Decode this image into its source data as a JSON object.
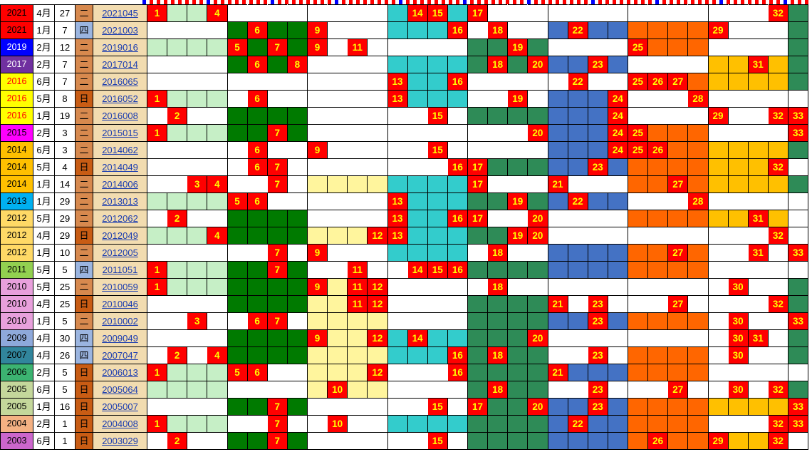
{
  "colors": {
    "hit": "#ff0000",
    "hit_text": "#ffff00",
    "period_bg": "#f2dcb0",
    "period_text": "#1a3cb0",
    "group_colors": [
      "#c6efc6",
      "#007a00",
      "#fff59d",
      "#33cccc",
      "#2e8b57",
      "#4472c4",
      "#ff6600",
      "#ffc000",
      "#2e8b57"
    ],
    "weekday_colors": {
      "二": "#d7894e",
      "日": "#c85c14",
      "四": "#9bb5e0"
    }
  },
  "header_strip": {
    "pattern": "red-white-blue-markers"
  },
  "rows": [
    {
      "year": "2021",
      "year_bg": "#ff0000",
      "year_fg": "#000000",
      "month": "4月",
      "day": "27",
      "weekday": "二",
      "period": "2021045",
      "groups": [
        1,
        0,
        0,
        1,
        0,
        0,
        0,
        0,
        1
      ],
      "nums": {
        "1": "1",
        "4": "4",
        "14": "14",
        "15": "15",
        "17": "17",
        "32": "32"
      }
    },
    {
      "year": "2021",
      "year_bg": "#ff0000",
      "year_fg": "#000000",
      "month": "1月",
      "day": "7",
      "weekday": "四",
      "period": "2021003",
      "groups": [
        0,
        1,
        0,
        1,
        0,
        1,
        1,
        0,
        1
      ],
      "nums": {
        "29": "29",
        "22": "22",
        "6": "6",
        "16": "16",
        "9": "9",
        "18": "18"
      }
    },
    {
      "year": "2019",
      "year_bg": "#0000ff",
      "year_fg": "#ffffff",
      "month": "2月",
      "day": "12",
      "weekday": "二",
      "period": "2019016",
      "groups": [
        1,
        1,
        0,
        0,
        1,
        0,
        1,
        0,
        1
      ],
      "nums": {
        "19": "19",
        "11": "11",
        "5": "5",
        "7": "7",
        "25": "25",
        "9": "9"
      }
    },
    {
      "year": "2017",
      "year_bg": "#7030a0",
      "year_fg": "#ffffff",
      "month": "2月",
      "day": "7",
      "weekday": "二",
      "period": "2017014",
      "groups": [
        0,
        1,
        0,
        1,
        1,
        1,
        0,
        1,
        1
      ],
      "nums": {
        "20": "20",
        "31": "31",
        "23": "23",
        "6": "6",
        "8": "8",
        "18": "18"
      }
    },
    {
      "year": "2016",
      "year_bg": "#ffff00",
      "year_fg": "#ff0000",
      "month": "6月",
      "day": "7",
      "weekday": "二",
      "period": "2016065",
      "groups": [
        0,
        0,
        0,
        1,
        0,
        0,
        1,
        1,
        1
      ],
      "nums": {
        "13": "13",
        "22": "22",
        "16": "16",
        "25": "25",
        "26": "26",
        "27": "27"
      }
    },
    {
      "year": "2016",
      "year_bg": "#ffff00",
      "year_fg": "#ff0000",
      "month": "5月",
      "day": "8",
      "weekday": "日",
      "period": "2016052",
      "groups": [
        1,
        0,
        0,
        1,
        0,
        1,
        0,
        0,
        0
      ],
      "nums": {
        "1": "1",
        "19": "19",
        "28": "28",
        "13": "13",
        "6": "6",
        "24": "24"
      }
    },
    {
      "year": "2016",
      "year_bg": "#ffff00",
      "year_fg": "#ff0000",
      "month": "1月",
      "day": "19",
      "weekday": "二",
      "period": "2016008",
      "groups": [
        0,
        1,
        0,
        0,
        1,
        1,
        0,
        0,
        0
      ],
      "nums": {
        "2": "2",
        "29": "29",
        "32": "32",
        "15": "15",
        "24": "24",
        "33": "33"
      }
    },
    {
      "year": "2015",
      "year_bg": "#ff00ff",
      "year_fg": "#000000",
      "month": "2月",
      "day": "3",
      "weekday": "二",
      "period": "2015015",
      "groups": [
        1,
        1,
        0,
        0,
        0,
        1,
        1,
        0,
        0
      ],
      "nums": {
        "1": "1",
        "20": "20",
        "24": "24",
        "33": "33",
        "7": "7",
        "25": "25"
      }
    },
    {
      "year": "2014",
      "year_bg": "#ffc000",
      "year_fg": "#000000",
      "month": "6月",
      "day": "3",
      "weekday": "二",
      "period": "2014062",
      "groups": [
        0,
        0,
        0,
        0,
        0,
        1,
        1,
        1,
        1
      ],
      "nums": {
        "6": "6",
        "15": "15",
        "24": "24",
        "25": "25",
        "26": "26",
        "9": "9"
      }
    },
    {
      "year": "2014",
      "year_bg": "#ffc000",
      "year_fg": "#000000",
      "month": "5月",
      "day": "4",
      "weekday": "日",
      "period": "2014049",
      "groups": [
        0,
        0,
        0,
        0,
        1,
        1,
        1,
        1,
        0
      ],
      "nums": {
        "23": "23",
        "32": "32",
        "6": "6",
        "7": "7",
        "16": "16",
        "17": "17"
      }
    },
    {
      "year": "2014",
      "year_bg": "#ffc000",
      "year_fg": "#000000",
      "month": "1月",
      "day": "14",
      "weekday": "二",
      "period": "2014006",
      "groups": [
        0,
        0,
        1,
        1,
        0,
        0,
        1,
        1,
        1
      ],
      "nums": {
        "3": "3",
        "21": "21",
        "4": "4",
        "7": "7",
        "17": "17",
        "27": "27"
      }
    },
    {
      "year": "2013",
      "year_bg": "#00b0f0",
      "year_fg": "#000000",
      "month": "1月",
      "day": "29",
      "weekday": "二",
      "period": "2013013",
      "groups": [
        1,
        0,
        0,
        1,
        1,
        1,
        0,
        0,
        0
      ],
      "nums": {
        "19": "19",
        "28": "28",
        "13": "13",
        "22": "22",
        "5": "5",
        "6": "6"
      }
    },
    {
      "year": "2012",
      "year_bg": "#ffd966",
      "year_fg": "#000000",
      "month": "5月",
      "day": "29",
      "weekday": "二",
      "period": "2012062",
      "groups": [
        0,
        1,
        0,
        1,
        0,
        0,
        1,
        1,
        0
      ],
      "nums": {
        "2": "2",
        "20": "20",
        "13": "13",
        "31": "31",
        "16": "16",
        "17": "17"
      }
    },
    {
      "year": "2012",
      "year_bg": "#ffd966",
      "year_fg": "#000000",
      "month": "4月",
      "day": "29",
      "weekday": "日",
      "period": "2012049",
      "groups": [
        1,
        1,
        1,
        1,
        1,
        0,
        0,
        0,
        0
      ],
      "nums": {
        "19": "19",
        "20": "20",
        "12": "12",
        "4": "4",
        "13": "13",
        "32": "32"
      }
    },
    {
      "year": "2012",
      "year_bg": "#ffd966",
      "year_fg": "#000000",
      "month": "1月",
      "day": "10",
      "weekday": "二",
      "period": "2012005",
      "groups": [
        0,
        0,
        0,
        1,
        0,
        1,
        1,
        0,
        1
      ],
      "nums": {
        "31": "31",
        "33": "33",
        "7": "7",
        "9": "9",
        "18": "18",
        "27": "27"
      }
    },
    {
      "year": "2011",
      "year_bg": "#92d050",
      "year_fg": "#000000",
      "month": "5月",
      "day": "5",
      "weekday": "四",
      "period": "2011051",
      "groups": [
        1,
        1,
        0,
        0,
        1,
        1,
        1,
        0,
        0
      ],
      "nums": {
        "1": "1",
        "11": "11",
        "14": "14",
        "15": "15",
        "7": "7",
        "16": "16"
      }
    },
    {
      "year": "2010",
      "year_bg": "#e8a0dc",
      "year_fg": "#000000",
      "month": "5月",
      "day": "25",
      "weekday": "二",
      "period": "2010059",
      "groups": [
        1,
        1,
        1,
        0,
        0,
        0,
        0,
        0,
        1
      ],
      "nums": {
        "1": "1",
        "11": "11",
        "12": "12",
        "30": "30",
        "9": "9",
        "18": "18"
      }
    },
    {
      "year": "2010",
      "year_bg": "#e8a0dc",
      "year_fg": "#000000",
      "month": "4月",
      "day": "25",
      "weekday": "日",
      "period": "2010046",
      "groups": [
        0,
        1,
        1,
        0,
        1,
        0,
        0,
        0,
        1
      ],
      "nums": {
        "11": "11",
        "12": "12",
        "21": "21",
        "23": "23",
        "32": "32",
        "27": "27"
      }
    },
    {
      "year": "2010",
      "year_bg": "#e8a0dc",
      "year_fg": "#000000",
      "month": "1月",
      "day": "5",
      "weekday": "二",
      "period": "2010002",
      "groups": [
        0,
        0,
        1,
        0,
        1,
        1,
        1,
        0,
        0
      ],
      "nums": {
        "3": "3",
        "30": "30",
        "23": "23",
        "6": "6",
        "33": "33",
        "7": "7"
      }
    },
    {
      "year": "2009",
      "year_bg": "#8ea9db",
      "year_fg": "#000000",
      "month": "4月",
      "day": "30",
      "weekday": "四",
      "period": "2009049",
      "groups": [
        0,
        1,
        1,
        1,
        1,
        0,
        0,
        0,
        1
      ],
      "nums": {
        "20": "20",
        "12": "12",
        "30": "30",
        "31": "31",
        "14": "14",
        "9": "9"
      }
    },
    {
      "year": "2007",
      "year_bg": "#31859c",
      "year_fg": "#000000",
      "month": "4月",
      "day": "26",
      "weekday": "四",
      "period": "2007047",
      "groups": [
        0,
        1,
        1,
        1,
        1,
        0,
        1,
        0,
        1
      ],
      "nums": {
        "2": "2",
        "30": "30",
        "4": "4",
        "23": "23",
        "16": "16",
        "18": "18"
      }
    },
    {
      "year": "2006",
      "year_bg": "#3cb371",
      "year_fg": "#000000",
      "month": "2月",
      "day": "5",
      "weekday": "日",
      "period": "2006013",
      "groups": [
        1,
        0,
        1,
        0,
        1,
        1,
        1,
        0,
        0
      ],
      "nums": {
        "1": "1",
        "12": "12",
        "21": "21",
        "5": "5",
        "6": "6",
        "16": "16"
      }
    },
    {
      "year": "2005",
      "year_bg": "#c4d79b",
      "year_fg": "#000000",
      "month": "6月",
      "day": "5",
      "weekday": "日",
      "period": "2005064",
      "groups": [
        1,
        0,
        1,
        0,
        1,
        0,
        0,
        0,
        1
      ],
      "nums": {
        "10": "10",
        "30": "30",
        "23": "23",
        "32": "32",
        "18": "18",
        "27": "27"
      }
    },
    {
      "year": "2005",
      "year_bg": "#c4d79b",
      "year_fg": "#000000",
      "month": "1月",
      "day": "16",
      "weekday": "日",
      "period": "2005007",
      "groups": [
        0,
        1,
        0,
        0,
        1,
        1,
        1,
        1,
        0
      ],
      "nums": {
        "20": "20",
        "23": "23",
        "15": "15",
        "33": "33",
        "7": "7",
        "17": "17"
      }
    },
    {
      "year": "2004",
      "year_bg": "#f4b183",
      "year_fg": "#000000",
      "month": "2月",
      "day": "1",
      "weekday": "日",
      "period": "2004008",
      "groups": [
        1,
        0,
        0,
        1,
        1,
        1,
        1,
        0,
        0
      ],
      "nums": {
        "1": "1",
        "10": "10",
        "22": "22",
        "32": "32",
        "33": "33",
        "7": "7"
      }
    },
    {
      "year": "2003",
      "year_bg": "#cc66cc",
      "year_fg": "#000000",
      "month": "6月",
      "day": "1",
      "weekday": "日",
      "period": "2003029",
      "groups": [
        0,
        1,
        0,
        0,
        1,
        1,
        1,
        1,
        0
      ],
      "nums": {
        "2": "2",
        "29": "29",
        "32": "32",
        "15": "15",
        "7": "7",
        "26": "26"
      }
    }
  ]
}
